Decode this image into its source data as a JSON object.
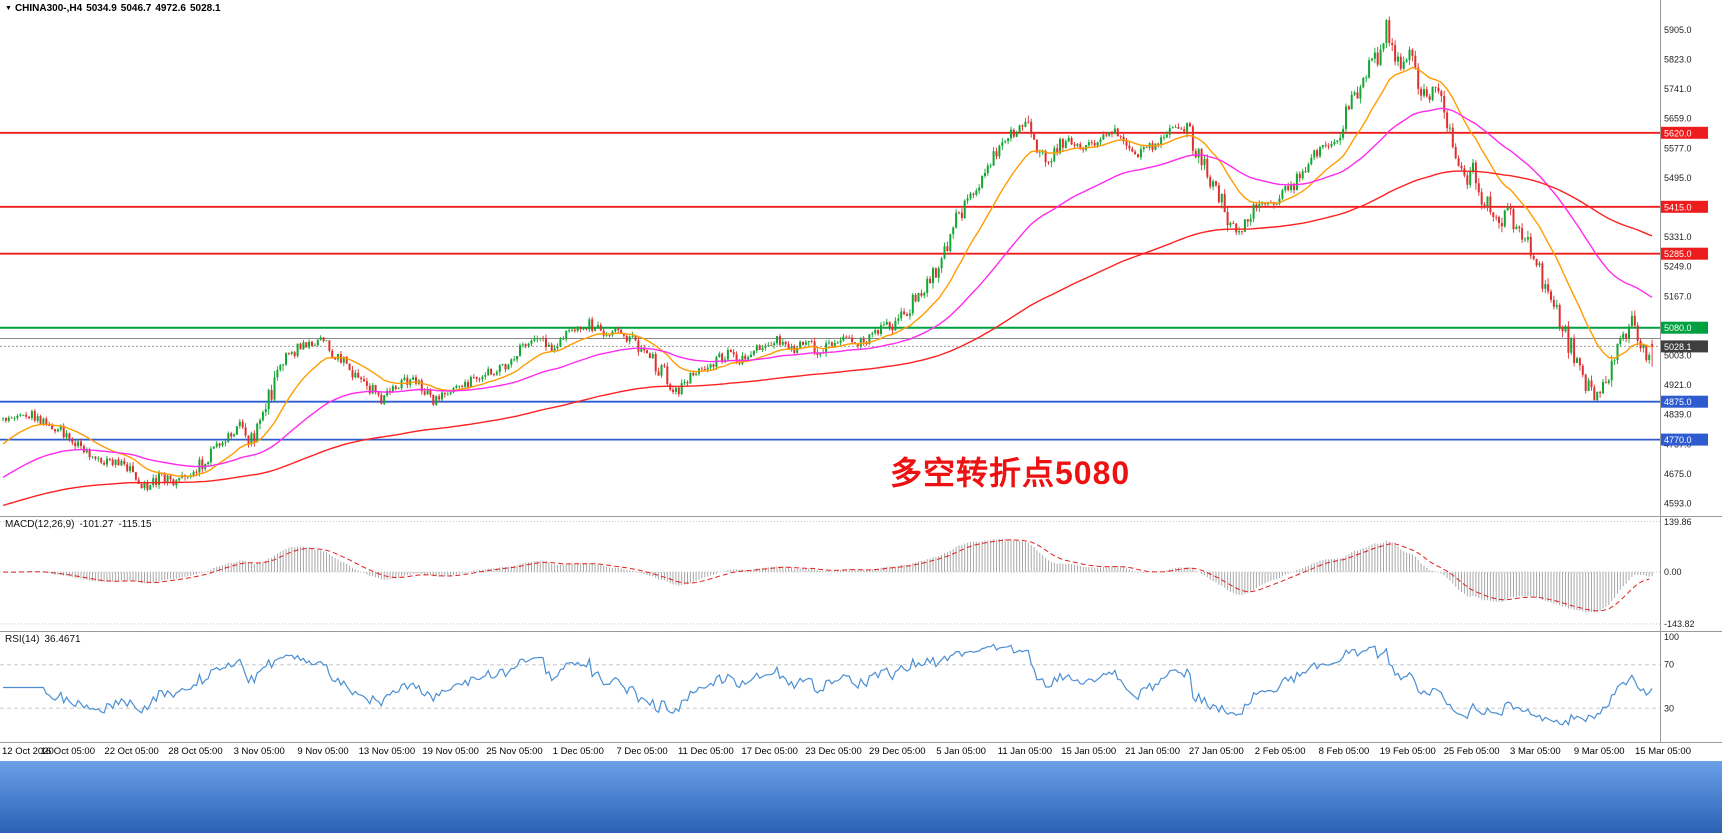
{
  "header": {
    "dropdown_glyph": "▼",
    "symbol_period": "CHINA300-,H4",
    "open": "5034.9",
    "high": "5046.7",
    "low": "4972.6",
    "close": "5028.1"
  },
  "annotation": {
    "text": "多空转折点5080",
    "color": "#ee1111"
  },
  "macd": {
    "label": "MACD(12,26,9)",
    "value1": "-101.27",
    "value2": "-115.15"
  },
  "rsi": {
    "label": "RSI(14)",
    "value": "36.4671"
  },
  "colors": {
    "bull": "#12a633",
    "bear": "#e02f2f",
    "current_badge": "#3f3f3f",
    "current_line": "#9a9a9a",
    "rsi_line": "#4a8fd4",
    "macd_hist": "#a8a8a8",
    "macd_signal": "#e02020",
    "axis_line": "#9a9a9a",
    "axis_text": "#222222",
    "grid_dash": "#c8c8c8"
  },
  "chart_data": {
    "type": "candlestick",
    "title": "CHINA300-,H4",
    "symbol": "CHINA300-",
    "timeframe": "H4",
    "bars_total": 572,
    "seed": 20210315,
    "price_axis": {
      "y_max": 5988,
      "y_min": 4561
    },
    "y_axis_ticks": [
      5905,
      5823,
      5741,
      5659,
      5577,
      5495,
      5413,
      5331,
      5249,
      5167,
      5085,
      5003,
      4921,
      4839,
      4757,
      4675,
      4593
    ],
    "levels": [
      {
        "price": 5620,
        "color": "#ee1c1c",
        "width": 1.8,
        "badge": true
      },
      {
        "price": 5415,
        "color": "#ee1c1c",
        "width": 1.8,
        "badge": true
      },
      {
        "price": 5285,
        "color": "#ee1c1c",
        "width": 1.8,
        "badge": true
      },
      {
        "price": 5080,
        "color": "#00a040",
        "width": 2.0,
        "badge": true
      },
      {
        "price": 5050,
        "color": "#888888",
        "width": 1.0,
        "badge": false
      },
      {
        "price": 4875,
        "color": "#2f5bd0",
        "width": 1.8,
        "badge": true
      },
      {
        "price": 4770,
        "color": "#2f5bd0",
        "width": 1.8,
        "badge": true
      }
    ],
    "current_price": {
      "value": 5028.1
    },
    "last_bar": {
      "open": 5034.9,
      "high": 5046.7,
      "low": 4972.6,
      "close": 5028.1
    },
    "peak_bar": {
      "index": 479,
      "high": 5931
    },
    "close_path_keypoints": [
      [
        0,
        4828
      ],
      [
        8,
        4845
      ],
      [
        14,
        4818
      ],
      [
        20,
        4792
      ],
      [
        26,
        4752
      ],
      [
        34,
        4713
      ],
      [
        42,
        4698
      ],
      [
        46,
        4662
      ],
      [
        50,
        4635
      ],
      [
        55,
        4668
      ],
      [
        60,
        4645
      ],
      [
        66,
        4682
      ],
      [
        72,
        4732
      ],
      [
        78,
        4782
      ],
      [
        82,
        4802
      ],
      [
        86,
        4768
      ],
      [
        90,
        4832
      ],
      [
        94,
        4922
      ],
      [
        98,
        5002
      ],
      [
        104,
        5032
      ],
      [
        110,
        5042
      ],
      [
        115,
        5006
      ],
      [
        120,
        4966
      ],
      [
        126,
        4921
      ],
      [
        131,
        4882
      ],
      [
        136,
        4916
      ],
      [
        141,
        4941
      ],
      [
        146,
        4906
      ],
      [
        150,
        4876
      ],
      [
        154,
        4901
      ],
      [
        160,
        4921
      ],
      [
        166,
        4946
      ],
      [
        172,
        4966
      ],
      [
        176,
        4991
      ],
      [
        181,
        5031
      ],
      [
        186,
        5056
      ],
      [
        190,
        5031
      ],
      [
        194,
        5056
      ],
      [
        198,
        5076
      ],
      [
        203,
        5091
      ],
      [
        208,
        5061
      ],
      [
        213,
        5076
      ],
      [
        218,
        5046
      ],
      [
        220,
        5031
      ],
      [
        225,
        4996
      ],
      [
        229,
        4946
      ],
      [
        232,
        4901
      ],
      [
        236,
        4926
      ],
      [
        240,
        4951
      ],
      [
        242,
        4961
      ],
      [
        247,
        4991
      ],
      [
        252,
        5011
      ],
      [
        256,
        4986
      ],
      [
        260,
        5016
      ],
      [
        264,
        5026
      ],
      [
        269,
        5046
      ],
      [
        274,
        5016
      ],
      [
        279,
        5041
      ],
      [
        283,
        5011
      ],
      [
        286,
        5031
      ],
      [
        291,
        5046
      ],
      [
        296,
        5031
      ],
      [
        300,
        5056
      ],
      [
        304,
        5076
      ],
      [
        308,
        5091
      ],
      [
        313,
        5131
      ],
      [
        318,
        5181
      ],
      [
        322,
        5231
      ],
      [
        326,
        5291
      ],
      [
        330,
        5381
      ],
      [
        335,
        5441
      ],
      [
        340,
        5501
      ],
      [
        344,
        5561
      ],
      [
        348,
        5611
      ],
      [
        352,
        5626
      ],
      [
        355,
        5651
      ],
      [
        358,
        5591
      ],
      [
        361,
        5521
      ],
      [
        364,
        5561
      ],
      [
        368,
        5601
      ],
      [
        371,
        5586
      ],
      [
        374,
        5576
      ],
      [
        379,
        5601
      ],
      [
        384,
        5621
      ],
      [
        388,
        5586
      ],
      [
        392,
        5556
      ],
      [
        396,
        5571
      ],
      [
        401,
        5601
      ],
      [
        406,
        5636
      ],
      [
        409,
        5651
      ],
      [
        412,
        5601
      ],
      [
        415,
        5546
      ],
      [
        418,
        5496
      ],
      [
        422,
        5431
      ],
      [
        425,
        5361
      ],
      [
        428,
        5331
      ],
      [
        432,
        5391
      ],
      [
        436,
        5431
      ],
      [
        440,
        5421
      ],
      [
        445,
        5461
      ],
      [
        450,
        5511
      ],
      [
        455,
        5561
      ],
      [
        459,
        5591
      ],
      [
        462,
        5606
      ],
      [
        466,
        5681
      ],
      [
        470,
        5761
      ],
      [
        473,
        5801
      ],
      [
        476,
        5841
      ],
      [
        479,
        5906
      ],
      [
        481,
        5861
      ],
      [
        484,
        5781
      ],
      [
        487,
        5821
      ],
      [
        490,
        5771
      ],
      [
        493,
        5701
      ],
      [
        496,
        5741
      ],
      [
        499,
        5681
      ],
      [
        502,
        5601
      ],
      [
        506,
        5481
      ],
      [
        509,
        5521
      ],
      [
        512,
        5451
      ],
      [
        515,
        5391
      ],
      [
        518,
        5351
      ],
      [
        521,
        5411
      ],
      [
        524,
        5361
      ],
      [
        528,
        5311
      ],
      [
        531,
        5251
      ],
      [
        534,
        5191
      ],
      [
        537,
        5131
      ],
      [
        540,
        5081
      ],
      [
        543,
        5021
      ],
      [
        546,
        4961
      ],
      [
        549,
        4911
      ],
      [
        552,
        4876
      ],
      [
        555,
        4941
      ],
      [
        558,
        5001
      ],
      [
        561,
        5061
      ],
      [
        564,
        5091
      ],
      [
        567,
        5031
      ],
      [
        569,
        4971
      ],
      [
        571,
        5028.1
      ]
    ],
    "moving_averages": [
      {
        "name": "ma-fast",
        "period": 20,
        "seed": 4750,
        "color": "#ff9c00"
      },
      {
        "name": "ma-mid",
        "period": 65,
        "seed": 4660,
        "color": "#ff2bee"
      },
      {
        "name": "ma-slow",
        "period": 200,
        "seed": 4585,
        "color": "#ff2020"
      }
    ],
    "indicators": {
      "macd": {
        "fast": 12,
        "slow": 26,
        "signal": 9,
        "current": -101.27,
        "signal_current": -115.15,
        "axis": [
          139.86,
          0,
          -143.82
        ]
      },
      "rsi": {
        "period": 14,
        "current": 36.4671,
        "levels": [
          70,
          30
        ],
        "axis": [
          100,
          70,
          30
        ]
      }
    },
    "time_labels": [
      "12 Oct 2020",
      "16 Oct 05:00",
      "22 Oct 05:00",
      "28 Oct 05:00",
      "3 Nov 05:00",
      "9 Nov 05:00",
      "13 Nov 05:00",
      "19 Nov 05:00",
      "25 Nov 05:00",
      "1 Dec 05:00",
      "7 Dec 05:00",
      "11 Dec 05:00",
      "17 Dec 05:00",
      "23 Dec 05:00",
      "29 Dec 05:00",
      "5 Jan 05:00",
      "11 Jan 05:00",
      "15 Jan 05:00",
      "21 Jan 05:00",
      "27 Jan 05:00",
      "2 Feb 05:00",
      "8 Feb 05:00",
      "19 Feb 05:00",
      "25 Feb 05:00",
      "3 Mar 05:00",
      "9 Mar 05:00",
      "15 Mar 05:00"
    ]
  }
}
